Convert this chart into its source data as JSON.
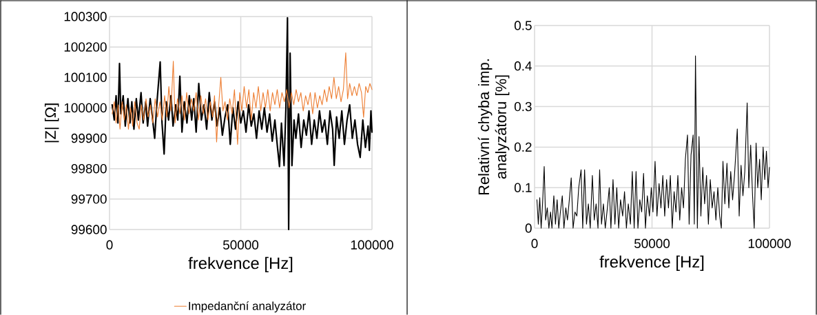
{
  "chart_data": [
    {
      "type": "line",
      "xlabel": "frekvence [Hz]",
      "ylabel": "|Z|  [Ω]",
      "xlim": [
        0,
        100000
      ],
      "ylim": [
        99600,
        100300
      ],
      "xticks": [
        0,
        50000,
        100000
      ],
      "yticks": [
        99600,
        99700,
        99800,
        99900,
        100000,
        100100,
        100200,
        100300
      ],
      "grid": true,
      "legend": "bottom",
      "series": [
        {
          "color": "#000000",
          "x": [
            1000,
            1800,
            2500,
            3200,
            3800,
            4300,
            5200,
            6000,
            7000,
            7800,
            8500,
            9300,
            10200,
            11000,
            12000,
            12800,
            13800,
            14500,
            15500,
            16300,
            17200,
            18000,
            19300,
            20000,
            20800,
            21600,
            22500,
            23400,
            24200,
            25200,
            26000,
            26800,
            27600,
            28500,
            29500,
            30400,
            31300,
            32100,
            33000,
            34000,
            35000,
            36000,
            37000,
            38000,
            39000,
            40000,
            41000,
            42000,
            43000,
            44000,
            45000,
            46000,
            47000,
            48000,
            49000,
            50000,
            51000,
            52000,
            53000,
            54000,
            55000,
            56000,
            57000,
            58000,
            59000,
            60000,
            61000,
            62000,
            63000,
            64000,
            64750,
            65500,
            66500,
            67200,
            67800,
            68250,
            68800,
            69500,
            70300,
            71000,
            72000,
            73000,
            74000,
            75000,
            76000,
            77000,
            78000,
            79000,
            80000,
            81000,
            82000,
            83000,
            84000,
            85000,
            85600,
            86500,
            87500,
            88500,
            89500,
            90500,
            91500,
            92500,
            93500,
            94500,
            95500,
            96500,
            97500,
            98500,
            99000,
            99600,
            100000
          ],
          "values": [
            100010,
            99960,
            100040,
            99950,
            100146,
            99980,
            100040,
            99940,
            100030,
            99950,
            100020,
            99930,
            100030,
            99960,
            100050,
            99950,
            100020,
            99940,
            100030,
            99970,
            99900,
            100010,
            100151,
            99950,
            99848,
            100020,
            99960,
            100040,
            99940,
            100010,
            99960,
            100104,
            99920,
            100020,
            99950,
            100040,
            99960,
            100030,
            99920,
            100080,
            99960,
            100010,
            99930,
            100050,
            99960,
            100020,
            99940,
            100000,
            99910,
            99970,
            100010,
            99880,
            100000,
            99930,
            100020,
            99950,
            99990,
            99920,
            100010,
            99940,
            99980,
            99900,
            99990,
            99930,
            100000,
            99920,
            99980,
            99890,
            99960,
            99870,
            99807,
            99950,
            99810,
            100000,
            100296,
            99600,
            100180,
            99810,
            99960,
            99900,
            99980,
            99870,
            99960,
            99910,
            99990,
            99880,
            99960,
            99900,
            99990,
            99920,
            99960,
            99880,
            99990,
            99930,
            99811,
            99970,
            99900,
            99990,
            99880,
            99960,
            100010,
            99900,
            99960,
            99880,
            99837,
            99960,
            99870,
            99940,
            99860,
            99990,
            99920
          ]
        },
        {
          "name": "Impedanční analyzátor",
          "color": "#ed7d31",
          "x": [
            1000,
            1800,
            2500,
            3300,
            4000,
            4800,
            5600,
            6400,
            7200,
            8000,
            8800,
            9600,
            10500,
            11300,
            12100,
            13000,
            13900,
            14700,
            15600,
            16500,
            17400,
            18300,
            19200,
            20100,
            21000,
            21800,
            22600,
            23400,
            24300,
            25000,
            25900,
            26800,
            27600,
            28500,
            29400,
            30300,
            31200,
            32100,
            33000,
            33900,
            34800,
            35700,
            36600,
            37500,
            38400,
            39300,
            40000,
            40800,
            41600,
            42400,
            43200,
            44000,
            44900,
            45800,
            46700,
            47600,
            48800,
            49600,
            50400,
            51300,
            52200,
            53100,
            54000,
            54900,
            55800,
            56700,
            57600,
            58500,
            59400,
            60300,
            61200,
            62100,
            63000,
            63900,
            64800,
            65700,
            66600,
            67500,
            68400,
            69300,
            70200,
            71100,
            72000,
            72900,
            73800,
            74700,
            75600,
            76500,
            77400,
            78300,
            79200,
            80100,
            81000,
            81900,
            82800,
            83700,
            84600,
            85500,
            86400,
            87300,
            88200,
            89100,
            90000,
            90700,
            91500,
            92400,
            93300,
            94200,
            95100,
            96000,
            96800,
            97600,
            98400,
            99200,
            100000
          ],
          "values": [
            99980,
            100020,
            99950,
            100010,
            99930,
            100020,
            99960,
            100010,
            99930,
            100000,
            99940,
            100020,
            99950,
            99930,
            100010,
            99960,
            100030,
            99970,
            100010,
            99950,
            100030,
            99970,
            100020,
            99960,
            100040,
            99970,
            100070,
            99990,
            100153,
            99950,
            100030,
            99980,
            100040,
            99960,
            100050,
            99980,
            100030,
            99990,
            100050,
            99960,
            100040,
            99980,
            100030,
            99960,
            100020,
            99970,
            100040,
            99888,
            100010,
            100100,
            99990,
            100020,
            99960,
            100030,
            99980,
            100060,
            99880,
            100050,
            99990,
            100070,
            100000,
            100060,
            99960,
            100050,
            100000,
            100070,
            99990,
            100050,
            100000,
            100060,
            99990,
            100050,
            100010,
            100060,
            100000,
            100050,
            100020,
            100060,
            100000,
            100050,
            100010,
            100060,
            100020,
            100050,
            99990,
            100040,
            100010,
            100050,
            99980,
            100050,
            100000,
            100040,
            100010,
            100060,
            100020,
            100070,
            100030,
            100100,
            100030,
            100070,
            100020,
            100060,
            100181,
            100030,
            100080,
            100040,
            100070,
            100040,
            100080,
            100050,
            99969,
            100070,
            100050,
            100080,
            100060
          ]
        }
      ]
    },
    {
      "type": "line",
      "xlabel": "frekvence [Hz]",
      "ylabel": "Relativní chyba imp. analyzátoru  [%]",
      "xlim": [
        0,
        100000
      ],
      "ylim": [
        0,
        0.5
      ],
      "xticks": [
        0,
        50000,
        100000
      ],
      "yticks": [
        0,
        0.1,
        0.2,
        0.3,
        0.4,
        0.5
      ],
      "grid": true,
      "series": [
        {
          "color": "#000000",
          "x": [
            1000,
            1600,
            2200,
            2800,
            3400,
            4100,
            4700,
            5400,
            6100,
            6800,
            7400,
            8200,
            8900,
            9600,
            10300,
            11000,
            11800,
            12500,
            13300,
            14000,
            14800,
            15600,
            16400,
            17200,
            18000,
            18800,
            19800,
            20500,
            21300,
            22100,
            22900,
            23700,
            24600,
            25400,
            26200,
            27000,
            27700,
            28500,
            29300,
            30100,
            31000,
            31800,
            32500,
            33400,
            34200,
            35000,
            35800,
            36600,
            37500,
            38300,
            39100,
            39900,
            40800,
            41600,
            42400,
            43200,
            44000,
            44800,
            45600,
            46400,
            47200,
            48000,
            48900,
            49700,
            50400,
            51300,
            52100,
            53000,
            53800,
            54600,
            55400,
            56200,
            57000,
            57800,
            58600,
            59400,
            60200,
            61000,
            61800,
            62600,
            63400,
            64200,
            65100,
            65800,
            66600,
            67500,
            68000,
            68500,
            69300,
            70000,
            70800,
            71600,
            72400,
            73200,
            74000,
            74800,
            75600,
            76400,
            77200,
            78000,
            78800,
            79500,
            80200,
            81000,
            81900,
            82700,
            83500,
            84300,
            85100,
            86300,
            87100,
            87900,
            88700,
            89500,
            90500,
            91200,
            92000,
            92800,
            93500,
            94300,
            95000,
            95800,
            96500,
            97300,
            98000,
            98700,
            99400,
            100000
          ],
          "values": [
            0.07,
            0.01,
            0.075,
            0.0,
            0.06,
            0.152,
            0.02,
            0.05,
            0.0,
            0.04,
            0.0,
            0.08,
            0.01,
            0.07,
            0.0,
            0.04,
            0.08,
            0.0,
            0.05,
            0.02,
            0.07,
            0.124,
            0.0,
            0.04,
            0.03,
            0.1,
            0.144,
            0.0,
            0.144,
            0.01,
            0.06,
            0.0,
            0.13,
            0.02,
            0.06,
            0.0,
            0.144,
            0.01,
            0.06,
            0.0,
            0.05,
            0.1,
            0.0,
            0.12,
            0.01,
            0.1,
            0.0,
            0.07,
            0.03,
            0.09,
            0.0,
            0.06,
            0.01,
            0.14,
            0.0,
            0.14,
            0.0,
            0.07,
            0.04,
            0.135,
            0.0,
            0.08,
            0.03,
            0.1,
            0.04,
            0.165,
            0.03,
            0.11,
            0.05,
            0.13,
            0.03,
            0.12,
            0.05,
            0.13,
            0.0,
            0.09,
            0.04,
            0.13,
            0.02,
            0.1,
            0.05,
            0.17,
            0.23,
            0.01,
            0.18,
            0.23,
            0.01,
            0.425,
            0.0,
            0.226,
            0.03,
            0.15,
            0.06,
            0.13,
            0.01,
            0.12,
            0.05,
            0.09,
            0.02,
            0.1,
            0.03,
            0.0,
            0.165,
            0.06,
            0.16,
            0.05,
            0.14,
            0.07,
            0.13,
            0.245,
            0.03,
            0.155,
            0.08,
            0.14,
            0.309,
            0.1,
            0.205,
            0.08,
            0.0,
            0.21,
            0.1,
            0.17,
            0.07,
            0.2,
            0.12,
            0.19,
            0.1,
            0.15
          ]
        }
      ]
    }
  ]
}
